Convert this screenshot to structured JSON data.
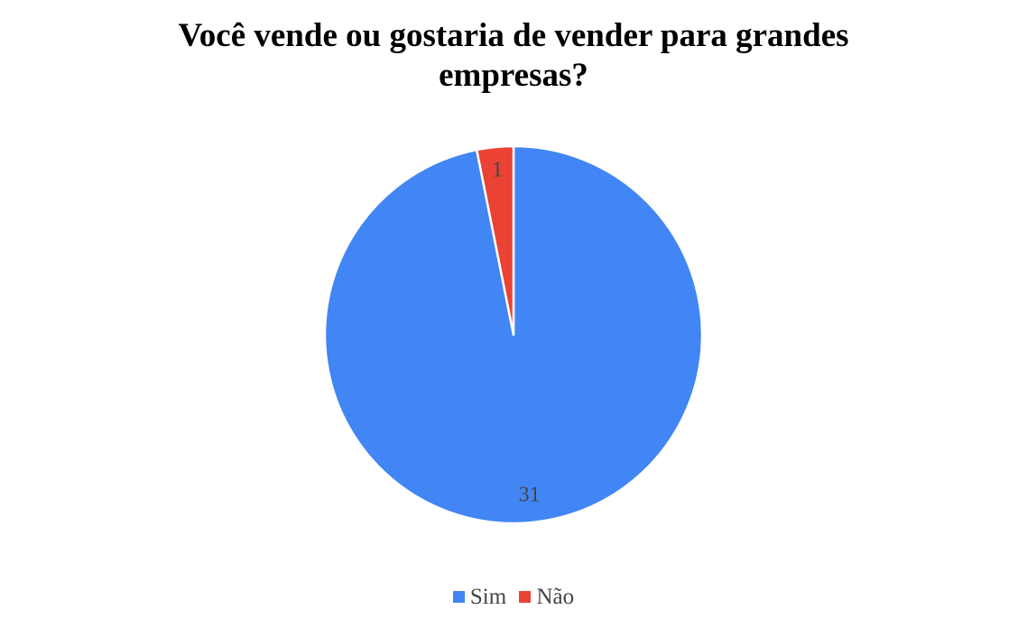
{
  "chart_data": {
    "type": "pie",
    "title": "Você vende ou gostaria de vender para grandes empresas?",
    "categories": [
      "Sim",
      "Não"
    ],
    "values": [
      31,
      1
    ],
    "colors": [
      "#4285F4",
      "#EA4335"
    ],
    "data_labels": [
      "31",
      "1"
    ],
    "legend_position": "bottom"
  }
}
